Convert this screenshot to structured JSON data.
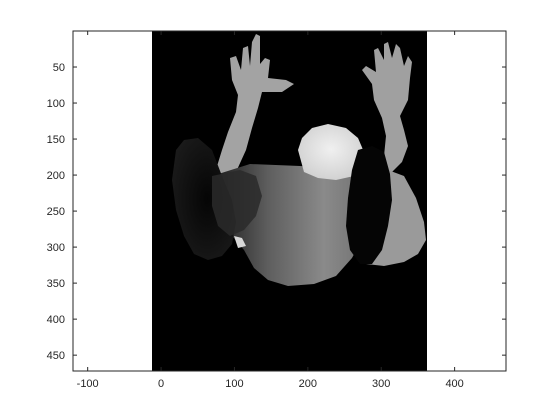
{
  "figure": {
    "image_description": "Grayscale depth image of a person seen from above, arms raised, displayed inside MATLAB-style axes",
    "background": "#ffffff",
    "axes_color": "#262626"
  },
  "axes": {
    "xlim": [
      -120,
      470
    ],
    "ylim": [
      0,
      472
    ],
    "y_reversed": true,
    "x_ticks": [
      -100,
      0,
      100,
      200,
      300,
      400
    ],
    "x_tick_labels": [
      "-100",
      "0",
      "100",
      "200",
      "300",
      "400"
    ],
    "y_ticks": [
      50,
      100,
      150,
      200,
      250,
      300,
      350,
      400,
      450
    ],
    "y_tick_labels": [
      "50",
      "100",
      "150",
      "200",
      "250",
      "300",
      "350",
      "400",
      "450"
    ],
    "box": true
  },
  "image": {
    "extent_x": [
      0,
      380
    ],
    "extent_y": [
      0,
      472
    ],
    "colormap": "gray"
  }
}
